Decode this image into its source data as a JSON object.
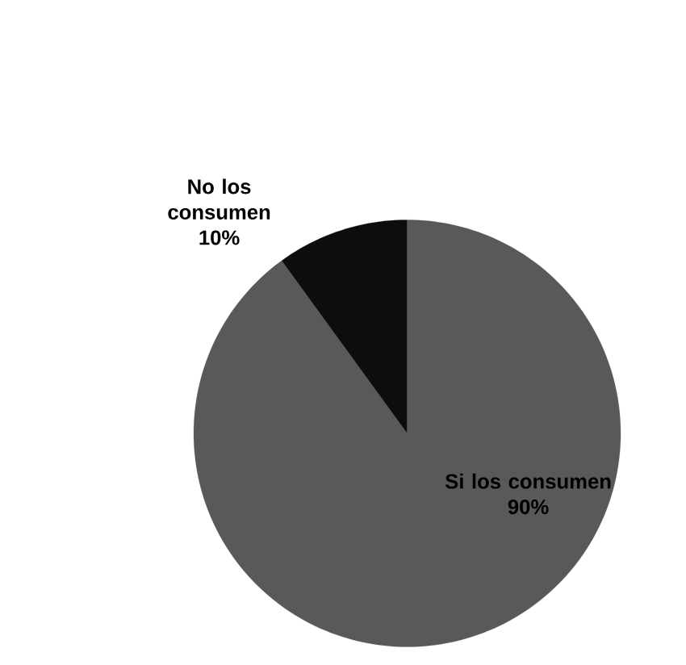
{
  "chart_data": {
    "type": "pie",
    "categories": [
      "Si los consumen",
      "No los consumen"
    ],
    "values": [
      90,
      10
    ],
    "colors": [
      "#595959",
      "#0d0d0d"
    ],
    "value_labels": [
      "90%",
      "10%"
    ]
  }
}
